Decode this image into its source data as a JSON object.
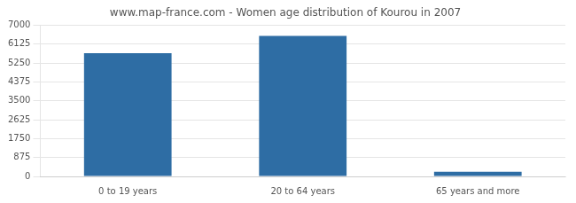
{
  "chart_data": {
    "type": "bar",
    "title": "www.map-france.com - Women age distribution of Kourou in 2007",
    "categories": [
      "0 to 19 years",
      "20 to 64 years",
      "65 years and more"
    ],
    "values": [
      5700,
      6500,
      220
    ],
    "color": "#2e6da4",
    "ylim": [
      0,
      7000
    ],
    "yticks": [
      0,
      875,
      1750,
      2625,
      3500,
      4375,
      5250,
      6125,
      7000
    ],
    "grid": true
  }
}
